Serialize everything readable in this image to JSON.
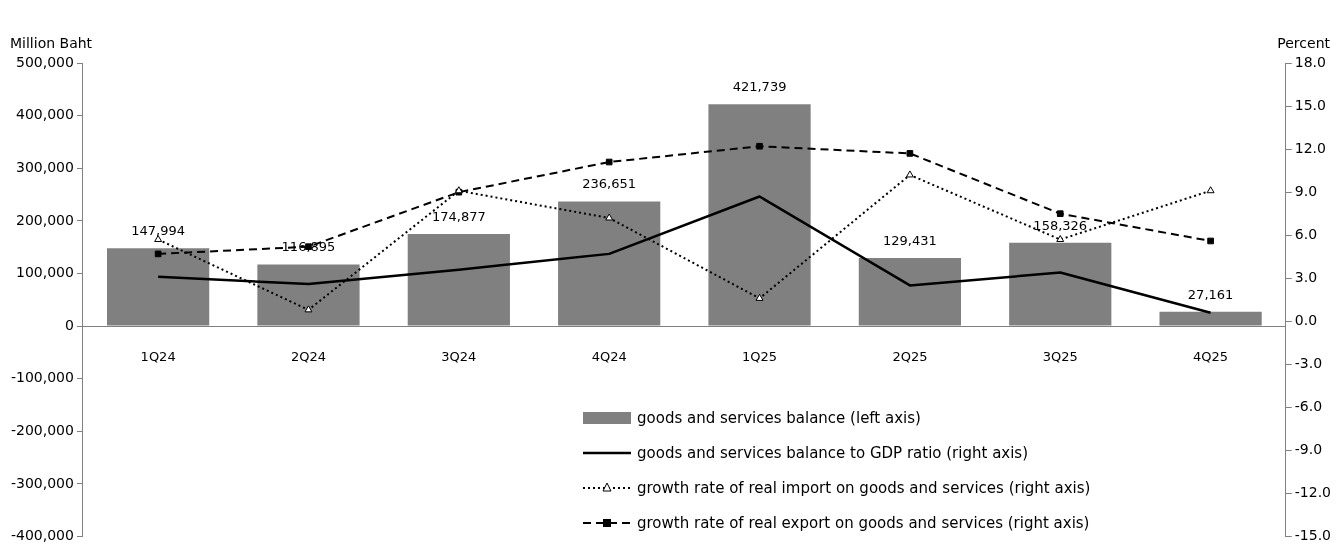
{
  "chart_data": {
    "type": "bar",
    "ylabel": "Million Baht",
    "y2label": "Percent",
    "categories": [
      "1Q24",
      "2Q24",
      "3Q24",
      "4Q24",
      "1Q25",
      "2Q25",
      "3Q25",
      "4Q25"
    ],
    "series": [
      {
        "name": "goods and services balance (left axis)",
        "color": "#808080",
        "values": [
          147994,
          116895,
          174877,
          236651,
          421739,
          129431,
          158326,
          27161
        ],
        "value_labels": [
          "147,994",
          "116,895",
          "174,877",
          "236,651",
          "421,739",
          "129,431",
          "158,326",
          "27,161"
        ]
      },
      {
        "name": "goods and services balance to GDP ratio (right axis)",
        "type": "line",
        "axis": "y2",
        "color": "#000000",
        "marker": "none",
        "line_style": "solid",
        "values": [
          3.1,
          2.6,
          3.6,
          4.7,
          8.7,
          2.5,
          3.4,
          0.6
        ]
      },
      {
        "name": "growth rate of real import on goods and services (right axis)",
        "type": "line",
        "axis": "y2",
        "color": "#000000",
        "marker": "triangle",
        "line_style": "dotted",
        "values": [
          5.7,
          0.8,
          9.1,
          7.2,
          1.6,
          10.2,
          5.7,
          9.1
        ]
      },
      {
        "name": "growth rate of real export on goods and services (right axis)",
        "type": "line",
        "axis": "y2",
        "color": "#000000",
        "marker": "square",
        "line_style": "dashed",
        "values": [
          4.7,
          5.2,
          9.0,
          11.1,
          12.2,
          11.7,
          7.5,
          5.6
        ]
      }
    ],
    "ylim": [
      -400000,
      500000
    ],
    "yticks": [
      {
        "value": -400000,
        "label": "-400,000"
      },
      {
        "value": -300000,
        "label": "-300,000"
      },
      {
        "value": -200000,
        "label": "-200,000"
      },
      {
        "value": -100000,
        "label": "-100,000"
      },
      0,
      {
        "value": 100000,
        "label": "100,000"
      },
      {
        "value": 200000,
        "label": "200,000"
      },
      {
        "value": 300000,
        "label": "300,000"
      },
      {
        "value": 400000,
        "label": "400,000"
      },
      {
        "value": 500000,
        "label": "500,000"
      }
    ],
    "y2lim": [
      -15,
      18
    ],
    "y2ticks": [
      {
        "value": -15,
        "label": "-15.0"
      },
      {
        "value": -12,
        "label": "-12.0"
      },
      {
        "value": -9,
        "label": "-9.0"
      },
      {
        "value": -6,
        "label": "-6.0"
      },
      {
        "value": -3,
        "label": "-3.0"
      },
      {
        "value": 0,
        "label": "0.0"
      },
      {
        "value": 3,
        "label": "3.0"
      },
      {
        "value": 6,
        "label": "6.0"
      },
      {
        "value": 9,
        "label": "9.0"
      },
      {
        "value": 12,
        "label": "12.0"
      },
      {
        "value": 15,
        "label": "15.0"
      },
      {
        "value": 18,
        "label": "18.0"
      }
    ],
    "grid": false,
    "legend": "bottom"
  }
}
